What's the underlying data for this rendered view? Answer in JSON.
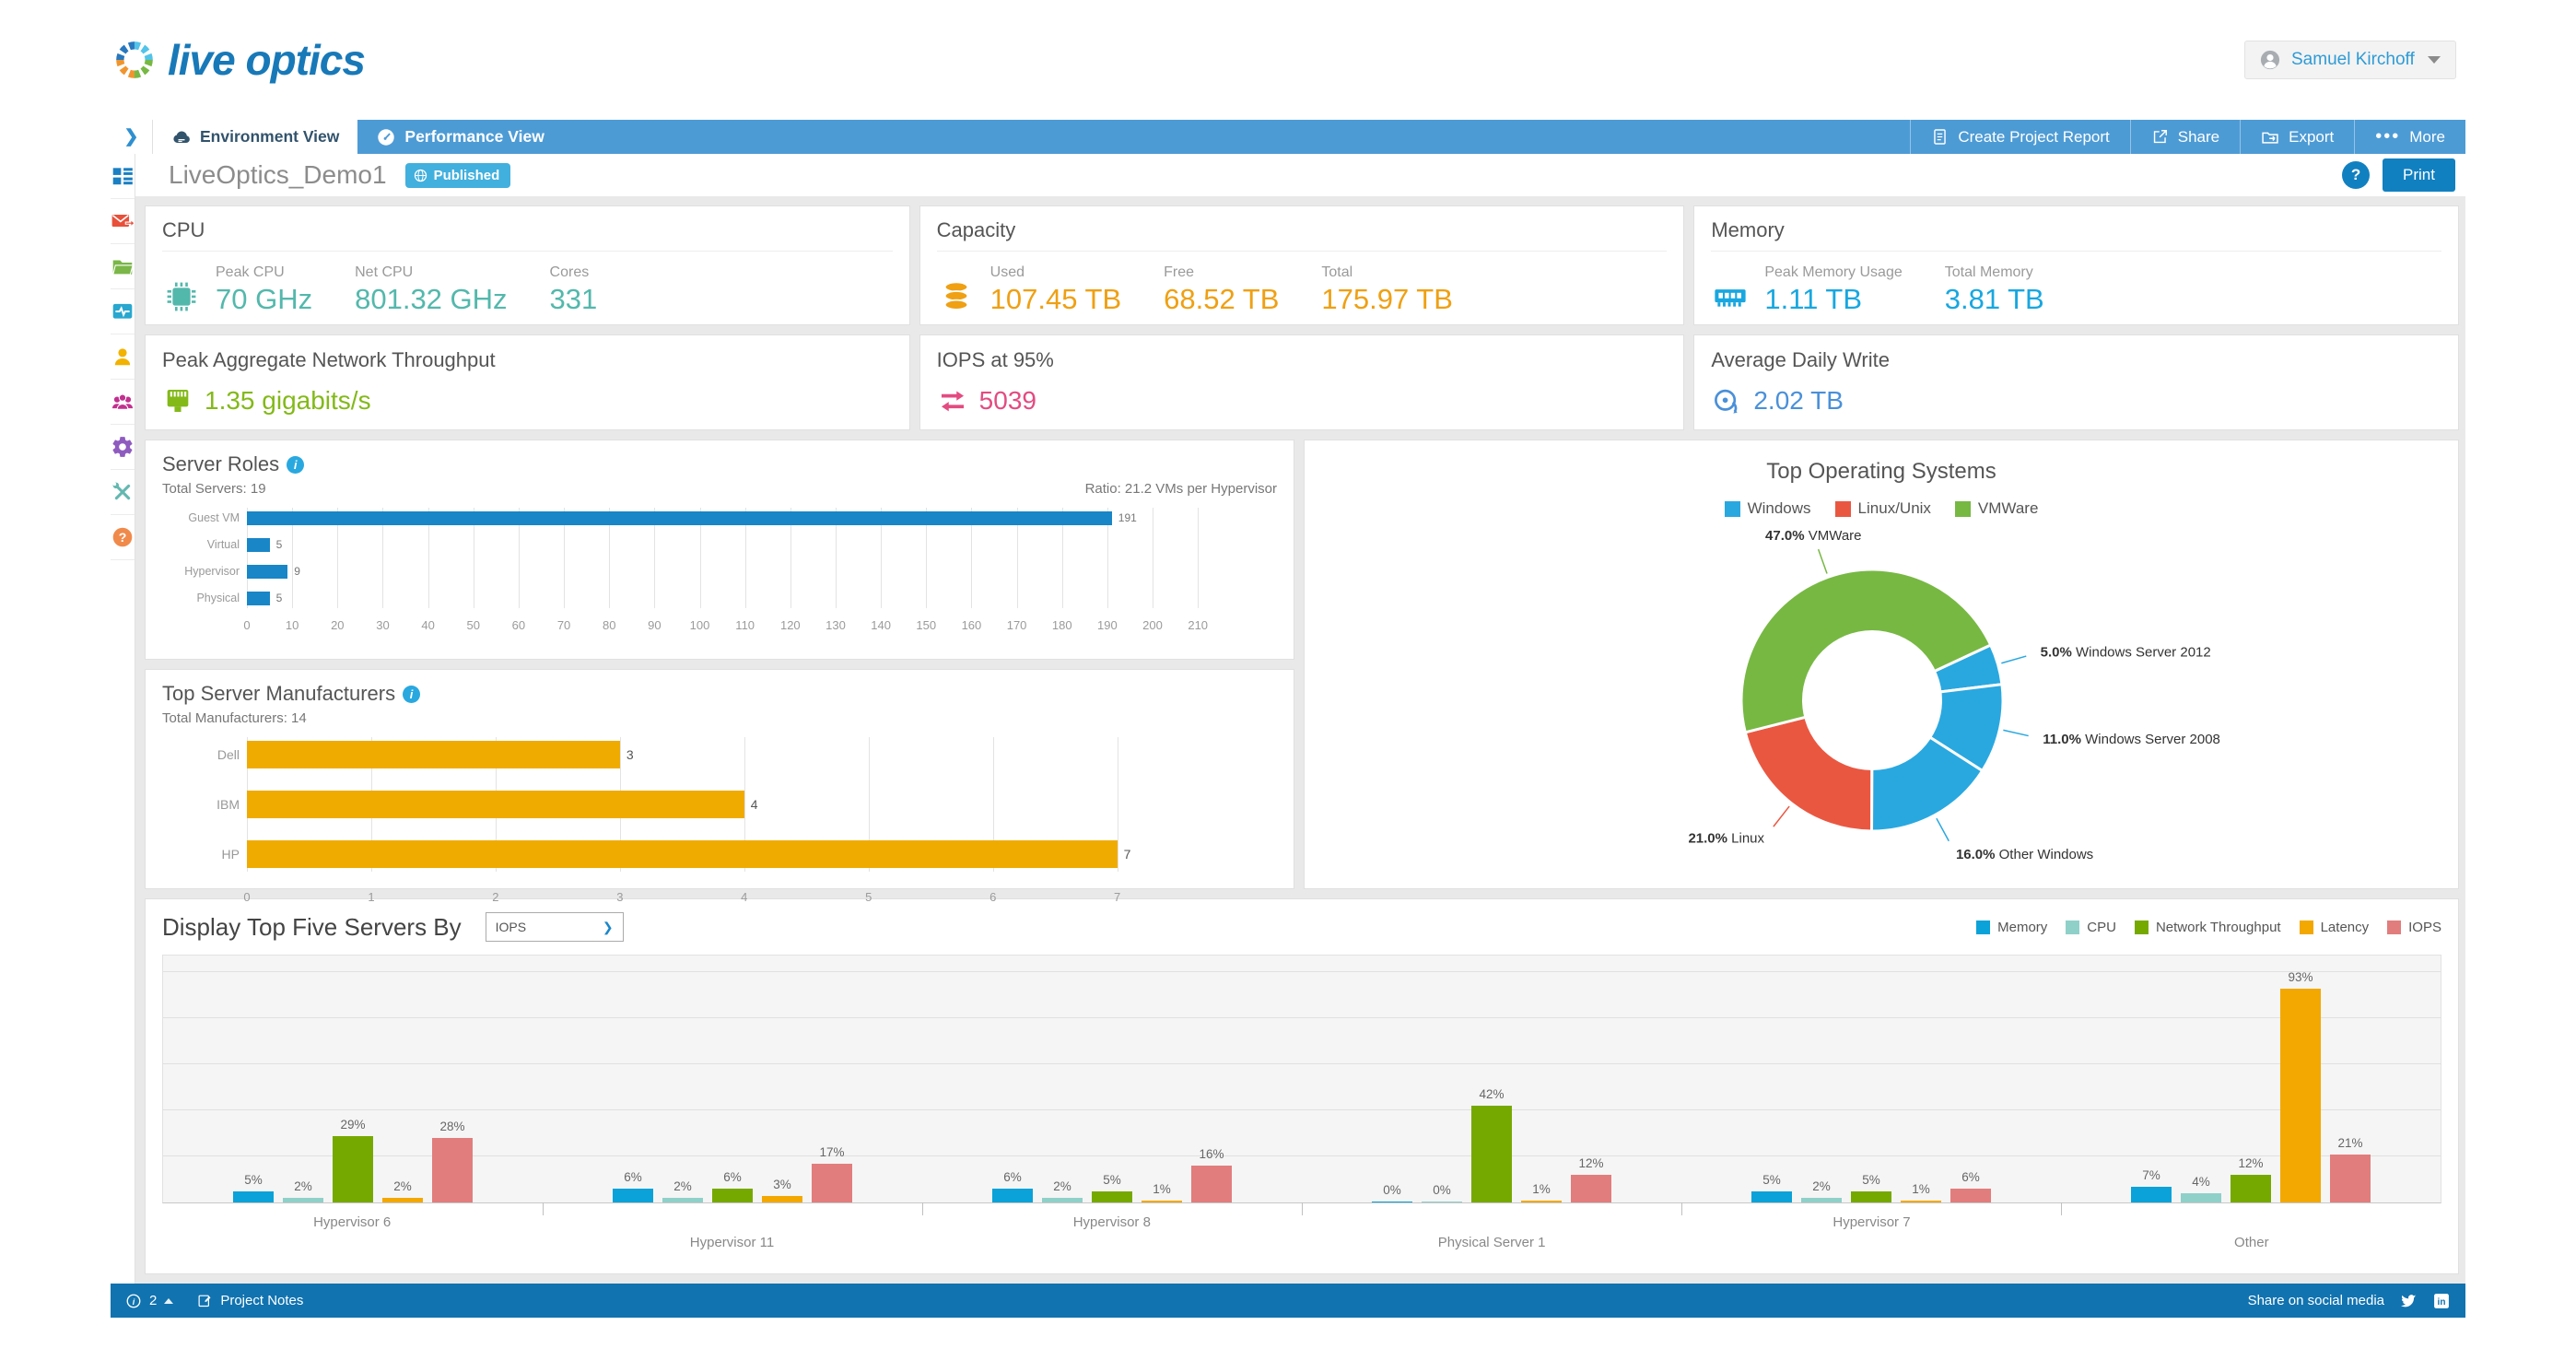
{
  "header": {
    "logo_text": "live optics",
    "user_name": "Samuel Kirchoff"
  },
  "nav": {
    "tabs": [
      {
        "label": "Environment View",
        "icon": "cloud",
        "active": true
      },
      {
        "label": "Performance View",
        "icon": "gauge",
        "active": false
      }
    ],
    "actions": [
      {
        "label": "Create Project Report",
        "icon": "document"
      },
      {
        "label": "Share",
        "icon": "share"
      },
      {
        "label": "Export",
        "icon": "folder-export"
      },
      {
        "label": "More",
        "icon": "ellipsis"
      }
    ]
  },
  "titlebar": {
    "project_name": "LiveOptics_Demo1",
    "status_badge": "Published",
    "print_label": "Print"
  },
  "sidebar": {
    "items": [
      {
        "name": "dashboard",
        "color": "#1a7fc3"
      },
      {
        "name": "mail-forward",
        "color": "#e8503a"
      },
      {
        "name": "folder",
        "color": "#7ab648"
      },
      {
        "name": "activity-monitor",
        "color": "#28a7cf"
      },
      {
        "name": "user",
        "color": "#f2b200"
      },
      {
        "name": "users-group",
        "color": "#c2308f"
      },
      {
        "name": "settings-gear",
        "color": "#8e5bbf"
      },
      {
        "name": "tools",
        "color": "#63b8b0"
      },
      {
        "name": "help",
        "color": "#f08a4b"
      }
    ]
  },
  "summary_cards": {
    "cpu": {
      "title": "CPU",
      "color": "#53b8ac",
      "metrics": [
        {
          "label": "Peak CPU",
          "value": "70 GHz"
        },
        {
          "label": "Net CPU",
          "value": "801.32 GHz"
        },
        {
          "label": "Cores",
          "value": "331"
        }
      ]
    },
    "capacity": {
      "title": "Capacity",
      "color": "#efa013",
      "metrics": [
        {
          "label": "Used",
          "value": "107.45 TB"
        },
        {
          "label": "Free",
          "value": "68.52 TB"
        },
        {
          "label": "Total",
          "value": "175.97 TB"
        }
      ]
    },
    "memory": {
      "title": "Memory",
      "color": "#18a7e0",
      "metrics": [
        {
          "label": "Peak Memory Usage",
          "value": "1.11 TB"
        },
        {
          "label": "Total Memory",
          "value": "3.81 TB"
        }
      ]
    },
    "network": {
      "title": "Peak Aggregate Network Throughput",
      "value": "1.35 gigabits/s",
      "color": "#83b919"
    },
    "iops": {
      "title": "IOPS at 95%",
      "value": "5039",
      "color": "#e34b81"
    },
    "daily_write": {
      "title": "Average Daily Write",
      "value": "2.02 TB",
      "color": "#4a90d9"
    }
  },
  "chart_data": [
    {
      "id": "server_roles",
      "type": "bar",
      "orientation": "horizontal",
      "title": "Server Roles",
      "subtitle_left": "Total Servers: 19",
      "subtitle_right": "Ratio: 21.2 VMs per Hypervisor",
      "categories": [
        "Guest VM",
        "Virtual",
        "Hypervisor",
        "Physical"
      ],
      "values": [
        191,
        5,
        9,
        5
      ],
      "bar_color": "#1886c7",
      "xlim": [
        0,
        210
      ],
      "x_tick_step": 10,
      "grid": true
    },
    {
      "id": "top_manufacturers",
      "type": "bar",
      "orientation": "horizontal",
      "title": "Top Server Manufacturers",
      "subtitle_left": "Total Manufacturers: 14",
      "categories": [
        "Dell",
        "IBM",
        "HP"
      ],
      "values": [
        3,
        4,
        7
      ],
      "bar_color": "#f0ab00",
      "xlim": [
        0,
        7
      ],
      "x_tick_step": 1,
      "grid": true
    },
    {
      "id": "top_os",
      "type": "pie",
      "donut": true,
      "title": "Top Operating Systems",
      "legend": [
        {
          "label": "Windows",
          "color": "#29a8e0"
        },
        {
          "label": "Linux/Unix",
          "color": "#ea5741"
        },
        {
          "label": "VMWare",
          "color": "#77b843"
        }
      ],
      "slices": [
        {
          "label": "Windows Server 2012",
          "pct": 5.0,
          "color": "#29a8e0"
        },
        {
          "label": "Windows Server 2008",
          "pct": 11.0,
          "color": "#29a8e0"
        },
        {
          "label": "Other Windows",
          "pct": 16.0,
          "color": "#29a8e0"
        },
        {
          "label": "Linux",
          "pct": 21.0,
          "color": "#ea5741"
        },
        {
          "label": "VMWare",
          "pct": 47.0,
          "color": "#77b843"
        }
      ],
      "start_angle_deg": 65
    },
    {
      "id": "top_servers",
      "type": "bar",
      "orientation": "vertical",
      "grouped": true,
      "title": "Display Top Five Servers By",
      "control": {
        "type": "select",
        "value": "IOPS"
      },
      "categories": [
        "Hypervisor 6",
        "Hypervisor 11",
        "Hypervisor 8",
        "Physical Server 1",
        "Hypervisor 7",
        "Other"
      ],
      "series": [
        {
          "name": "Memory",
          "color": "#0aa2d8",
          "values": [
            5,
            6,
            6,
            0,
            5,
            7
          ]
        },
        {
          "name": "CPU",
          "color": "#8fd0c9",
          "values": [
            2,
            2,
            2,
            0,
            2,
            4
          ]
        },
        {
          "name": "Network Throughput",
          "color": "#76a900",
          "values": [
            29,
            6,
            5,
            42,
            5,
            12
          ]
        },
        {
          "name": "Latency",
          "color": "#f2a800",
          "values": [
            2,
            3,
            1,
            1,
            1,
            93
          ]
        },
        {
          "name": "IOPS",
          "color": "#e27d7d",
          "values": [
            28,
            17,
            16,
            12,
            6,
            21
          ]
        }
      ],
      "value_suffix": "%",
      "ylim": [
        0,
        100
      ],
      "grid": true,
      "legend_position": "top-right"
    }
  ],
  "footer": {
    "notification_count": "2",
    "project_notes_label": "Project Notes",
    "share_label": "Share on social media"
  }
}
